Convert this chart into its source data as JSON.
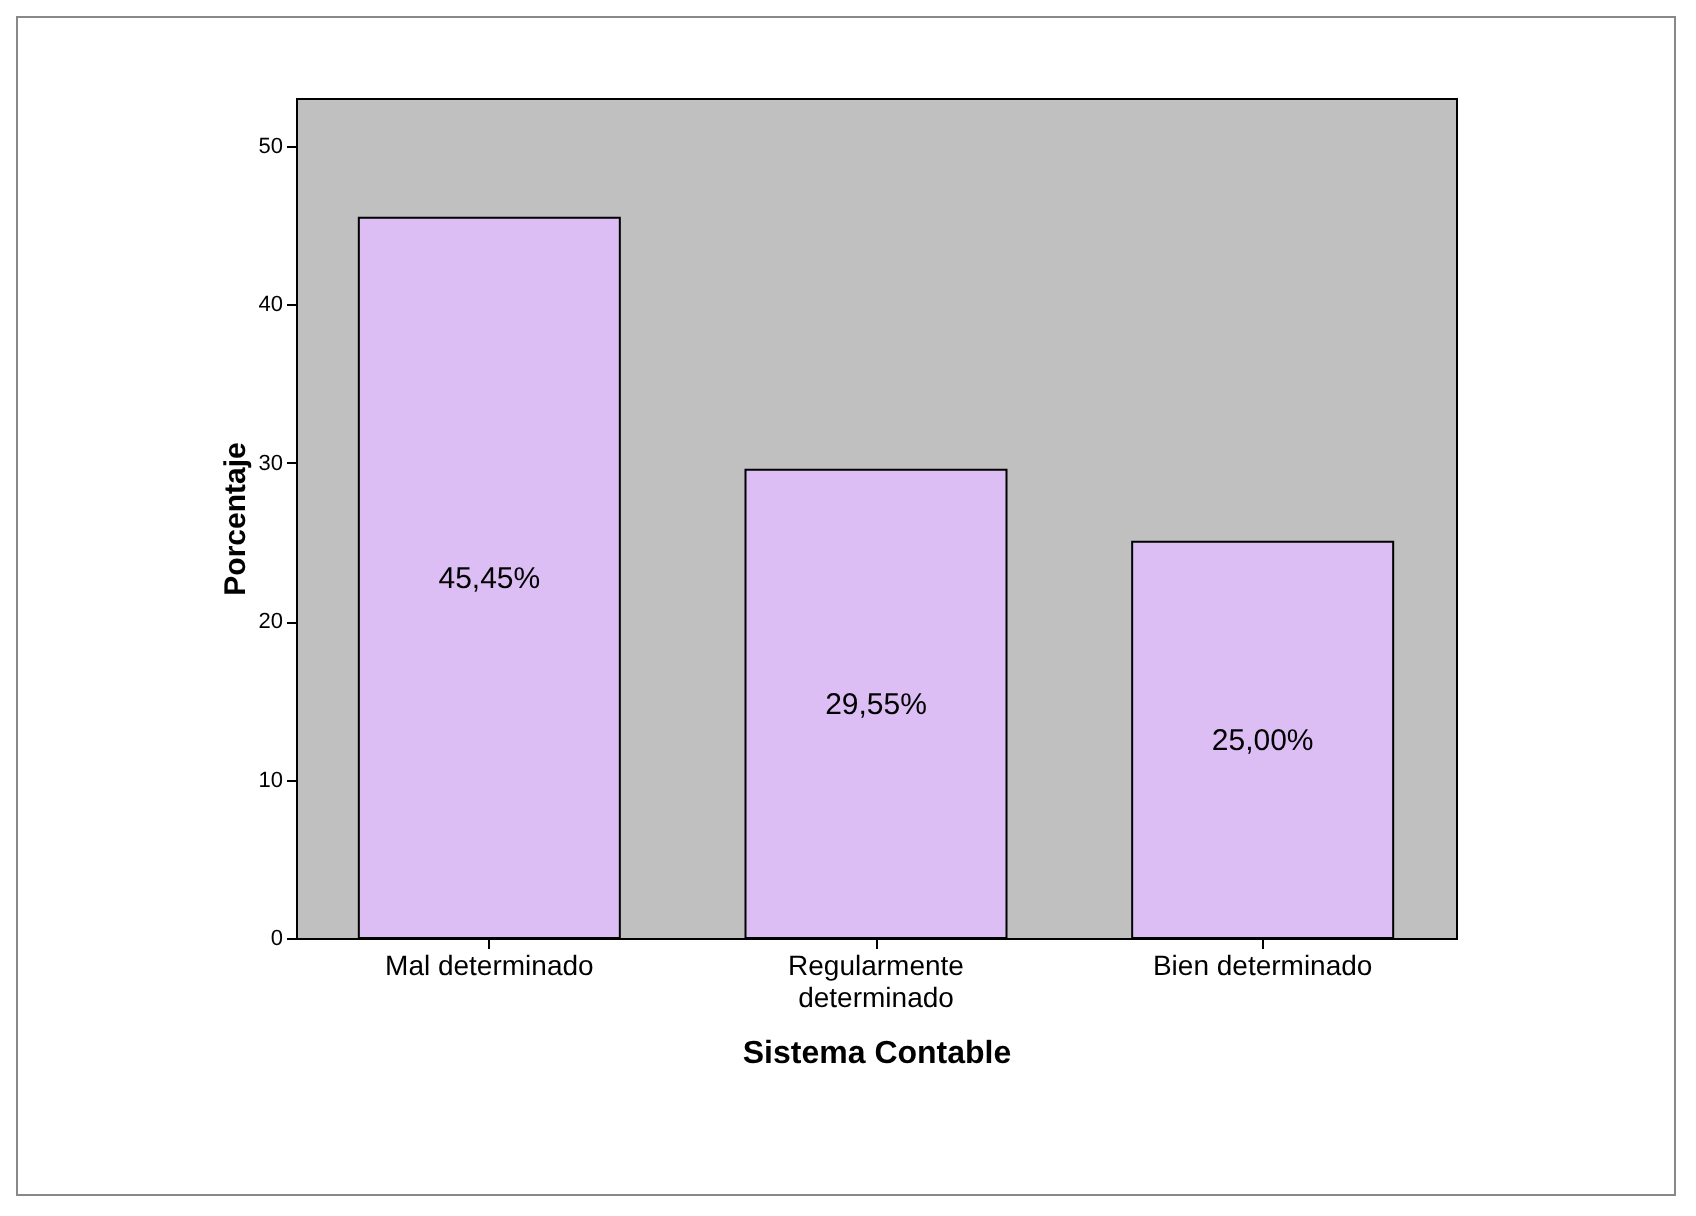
{
  "chart_data": {
    "type": "bar",
    "xlabel": "Sistema Contable",
    "ylabel": "Porcentaje",
    "categories": [
      "Mal determinado",
      "Regularmente determinado",
      "Bien determinado"
    ],
    "values": [
      45.45,
      29.55,
      25.0
    ],
    "value_labels": [
      "45,45%",
      "29,55%",
      "25,00%"
    ],
    "color": "#dcbef5",
    "ylim": [
      0,
      53
    ],
    "yticks": [
      0,
      10,
      20,
      30,
      40,
      50
    ],
    "grid": false
  }
}
